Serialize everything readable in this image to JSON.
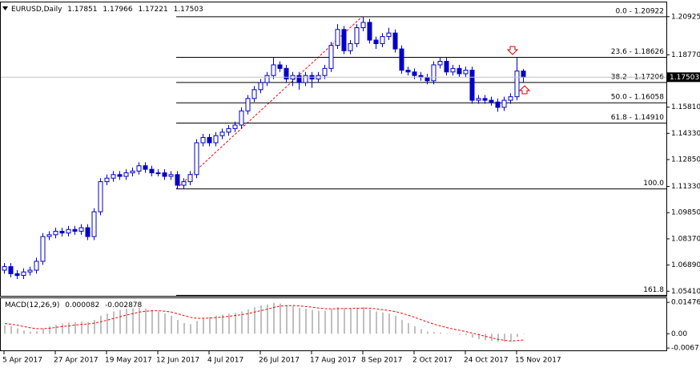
{
  "chart_data": [
    {
      "type": "candlestick",
      "title": "EURUSD,Daily",
      "categories": [
        "5 Apr 2017",
        null,
        null,
        null,
        null,
        null,
        null,
        null,
        "27 Apr 2017",
        null,
        null,
        null,
        null,
        null,
        null,
        null,
        "19 May 2017",
        null,
        null,
        null,
        null,
        null,
        null,
        null,
        "12 Jun 2017",
        null,
        null,
        null,
        null,
        null,
        null,
        null,
        "4 Jul 2017",
        null,
        null,
        null,
        null,
        null,
        null,
        null,
        "26 Jul 2017",
        null,
        null,
        null,
        null,
        null,
        null,
        null,
        "17 Aug 2017",
        null,
        null,
        null,
        null,
        null,
        null,
        null,
        "8 Sep 2017",
        null,
        null,
        null,
        null,
        null,
        null,
        null,
        "2 Oct 2017",
        null,
        null,
        null,
        null,
        null,
        null,
        null,
        "24 Oct 2017",
        null,
        null,
        null,
        null,
        null,
        null,
        null,
        "15 Nov 2017",
        null
      ],
      "open": [
        1.066,
        1.068,
        1.064,
        1.063,
        1.065,
        1.066,
        1.071,
        1.085,
        1.086,
        1.088,
        1.087,
        1.089,
        1.088,
        1.09,
        1.085,
        1.099,
        1.116,
        1.118,
        1.12,
        1.119,
        1.121,
        1.122,
        1.125,
        1.123,
        1.121,
        1.121,
        1.119,
        1.12,
        1.114,
        1.116,
        1.12,
        1.138,
        1.141,
        1.138,
        1.142,
        1.144,
        1.146,
        1.148,
        1.156,
        1.163,
        1.168,
        1.172,
        1.176,
        1.182,
        1.18,
        1.174,
        1.176,
        1.172,
        1.176,
        1.174,
        1.176,
        1.18,
        1.193,
        1.202,
        1.19,
        1.194,
        1.203,
        1.206,
        1.196,
        1.194,
        1.198,
        1.2,
        1.191,
        1.179,
        1.178,
        1.176,
        1.175,
        1.173,
        1.182,
        1.184,
        1.178,
        1.18,
        1.177,
        1.179,
        1.162,
        1.163,
        1.162,
        1.161,
        1.158,
        1.162,
        1.164,
        1.17851
      ],
      "high": [
        1.07,
        1.07,
        1.066,
        1.067,
        1.068,
        1.073,
        1.087,
        1.088,
        1.09,
        1.09,
        1.091,
        1.091,
        1.092,
        1.092,
        1.101,
        1.118,
        1.12,
        1.122,
        1.122,
        1.123,
        1.124,
        1.127,
        1.127,
        1.125,
        1.123,
        1.123,
        1.122,
        1.122,
        1.118,
        1.122,
        1.14,
        1.143,
        1.143,
        1.144,
        1.146,
        1.148,
        1.15,
        1.158,
        1.165,
        1.17,
        1.174,
        1.178,
        1.186,
        1.184,
        1.182,
        1.178,
        1.178,
        1.178,
        1.178,
        1.178,
        1.182,
        1.195,
        1.205,
        1.204,
        1.196,
        1.205,
        1.2092,
        1.208,
        1.198,
        1.2,
        1.203,
        1.202,
        1.193,
        1.181,
        1.18,
        1.178,
        1.177,
        1.184,
        1.186,
        1.186,
        1.182,
        1.182,
        1.181,
        1.181,
        1.165,
        1.165,
        1.164,
        1.163,
        1.164,
        1.166,
        1.186,
        1.17966
      ],
      "low": [
        1.064,
        1.062,
        1.061,
        1.061,
        1.063,
        1.064,
        1.069,
        1.083,
        1.084,
        1.085,
        1.085,
        1.086,
        1.086,
        1.083,
        1.083,
        1.097,
        1.114,
        1.116,
        1.117,
        1.117,
        1.119,
        1.12,
        1.121,
        1.119,
        1.119,
        1.117,
        1.117,
        1.1119,
        1.112,
        1.114,
        1.118,
        1.136,
        1.136,
        1.136,
        1.14,
        1.142,
        1.144,
        1.146,
        1.154,
        1.161,
        1.166,
        1.17,
        1.174,
        1.178,
        1.172,
        1.17,
        1.168,
        1.17,
        1.169,
        1.172,
        1.174,
        1.178,
        1.191,
        1.188,
        1.188,
        1.192,
        1.201,
        1.194,
        1.191,
        1.192,
        1.196,
        1.189,
        1.177,
        1.176,
        1.174,
        1.173,
        1.171,
        1.171,
        1.18,
        1.176,
        1.176,
        1.175,
        1.175,
        1.16,
        1.16,
        1.16,
        1.159,
        1.1555,
        1.156,
        1.16,
        1.162,
        1.17221
      ],
      "close": [
        1.068,
        1.064,
        1.063,
        1.065,
        1.066,
        1.071,
        1.085,
        1.086,
        1.088,
        1.087,
        1.089,
        1.088,
        1.09,
        1.085,
        1.099,
        1.116,
        1.118,
        1.12,
        1.119,
        1.121,
        1.122,
        1.125,
        1.123,
        1.121,
        1.121,
        1.119,
        1.12,
        1.114,
        1.116,
        1.12,
        1.138,
        1.141,
        1.138,
        1.142,
        1.144,
        1.146,
        1.148,
        1.156,
        1.163,
        1.168,
        1.172,
        1.176,
        1.182,
        1.18,
        1.174,
        1.176,
        1.172,
        1.176,
        1.174,
        1.176,
        1.18,
        1.193,
        1.202,
        1.19,
        1.194,
        1.203,
        1.206,
        1.196,
        1.194,
        1.198,
        1.2,
        1.191,
        1.179,
        1.178,
        1.176,
        1.175,
        1.173,
        1.182,
        1.184,
        1.178,
        1.18,
        1.177,
        1.179,
        1.162,
        1.163,
        1.162,
        1.161,
        1.158,
        1.162,
        1.164,
        1.17851,
        1.17503
      ],
      "up_color": "#ffffff",
      "down_color": "#0000c8",
      "wick_color": "#0000c8",
      "ylim": [
        1.0515,
        1.2173
      ],
      "yticks": [
        1.20925,
        {
          "value": 1.1877,
          "label": "1.18770"
        },
        {
          "value": 1.1581,
          "label": "1.15810"
        },
        {
          "value": 1.1433,
          "label": "1.14330"
        },
        {
          "value": 1.1285,
          "label": "1.12850"
        },
        {
          "value": 1.1133,
          "label": "1.11330"
        },
        {
          "value": 1.0985,
          "label": "1.09850"
        },
        {
          "value": 1.0837,
          "label": "1.08370"
        },
        {
          "value": 1.0689,
          "label": "1.06890"
        },
        {
          "value": 1.0541,
          "label": "1.05410"
        }
      ],
      "fib_levels": [
        {
          "value": 1.20922,
          "label": "0.0 - 1.20922"
        },
        {
          "value": 1.18626,
          "label": "23.6 - 1.18626"
        },
        {
          "value": 1.17206,
          "label": "38.2 - 1.17206"
        },
        {
          "value": 1.16058,
          "label": "50.0 - 1.16058"
        },
        {
          "value": 1.1491,
          "label": "61.8 - 1.14910"
        },
        {
          "value": 1.11194,
          "label": "100.0"
        },
        {
          "value": 1.0518,
          "label": "161.8"
        }
      ],
      "fib_color": "#000000",
      "trend_color": "#ff0000"
    },
    {
      "type": "macd",
      "title": "MACD(12,26,9)",
      "histogram": {
        "color": "#c0c0c0",
        "values": [
          0.004,
          0.0035,
          0.0025,
          0.0015,
          0.001,
          0.0012,
          0.0025,
          0.0035,
          0.0042,
          0.0048,
          0.0052,
          0.0055,
          0.0058,
          0.0055,
          0.0065,
          0.0085,
          0.0095,
          0.0105,
          0.0112,
          0.0118,
          0.012,
          0.0122,
          0.0118,
          0.0112,
          0.0105,
          0.0095,
          0.0085,
          0.0065,
          0.005,
          0.0045,
          0.006,
          0.0072,
          0.0078,
          0.0085,
          0.009,
          0.0094,
          0.0098,
          0.0105,
          0.0115,
          0.0125,
          0.0132,
          0.0138,
          0.0145,
          0.0142,
          0.0135,
          0.013,
          0.0122,
          0.0118,
          0.0112,
          0.0108,
          0.0108,
          0.0115,
          0.0125,
          0.012,
          0.0118,
          0.0122,
          0.0125,
          0.0115,
          0.0105,
          0.01,
          0.0095,
          0.0085,
          0.0065,
          0.005,
          0.0035,
          0.0022,
          0.001,
          0.0008,
          0.0006,
          0.0002,
          0.0,
          -0.0004,
          -0.0006,
          -0.0018,
          -0.0025,
          -0.003,
          -0.0034,
          -0.0038,
          -0.0036,
          -0.0032,
          -0.0015,
          8.2e-05
        ]
      },
      "signal": {
        "color": "#ff0000",
        "values": [
          0.0048,
          0.0045,
          0.004,
          0.0034,
          0.0028,
          0.0024,
          0.0024,
          0.0026,
          0.003,
          0.0034,
          0.0037,
          0.0041,
          0.0044,
          0.0046,
          0.005,
          0.0057,
          0.0064,
          0.0072,
          0.008,
          0.0088,
          0.0095,
          0.0102,
          0.0106,
          0.0108,
          0.0108,
          0.0106,
          0.0102,
          0.0094,
          0.0085,
          0.0077,
          0.0073,
          0.0073,
          0.0074,
          0.0076,
          0.0079,
          0.0082,
          0.0086,
          0.009,
          0.0095,
          0.0102,
          0.0109,
          0.0116,
          0.0124,
          0.013,
          0.0132,
          0.0133,
          0.0131,
          0.0128,
          0.0125,
          0.0121,
          0.0118,
          0.0117,
          0.0118,
          0.0119,
          0.0119,
          0.012,
          0.0121,
          0.012,
          0.0117,
          0.0113,
          0.0109,
          0.0104,
          0.0096,
          0.0087,
          0.0077,
          0.0066,
          0.0055,
          0.0045,
          0.0037,
          0.0029,
          0.0022,
          0.0016,
          0.001,
          0.0003,
          -0.0004,
          -0.0012,
          -0.0019,
          -0.0026,
          -0.0031,
          -0.0034,
          -0.0032,
          -0.002878
        ]
      },
      "ylim": [
        -0.0078,
        0.0167
      ],
      "yticks": [
        0.014763,
        {
          "value": 0,
          "label": "0.00"
        },
        -0.006713
      ]
    }
  ]
}
